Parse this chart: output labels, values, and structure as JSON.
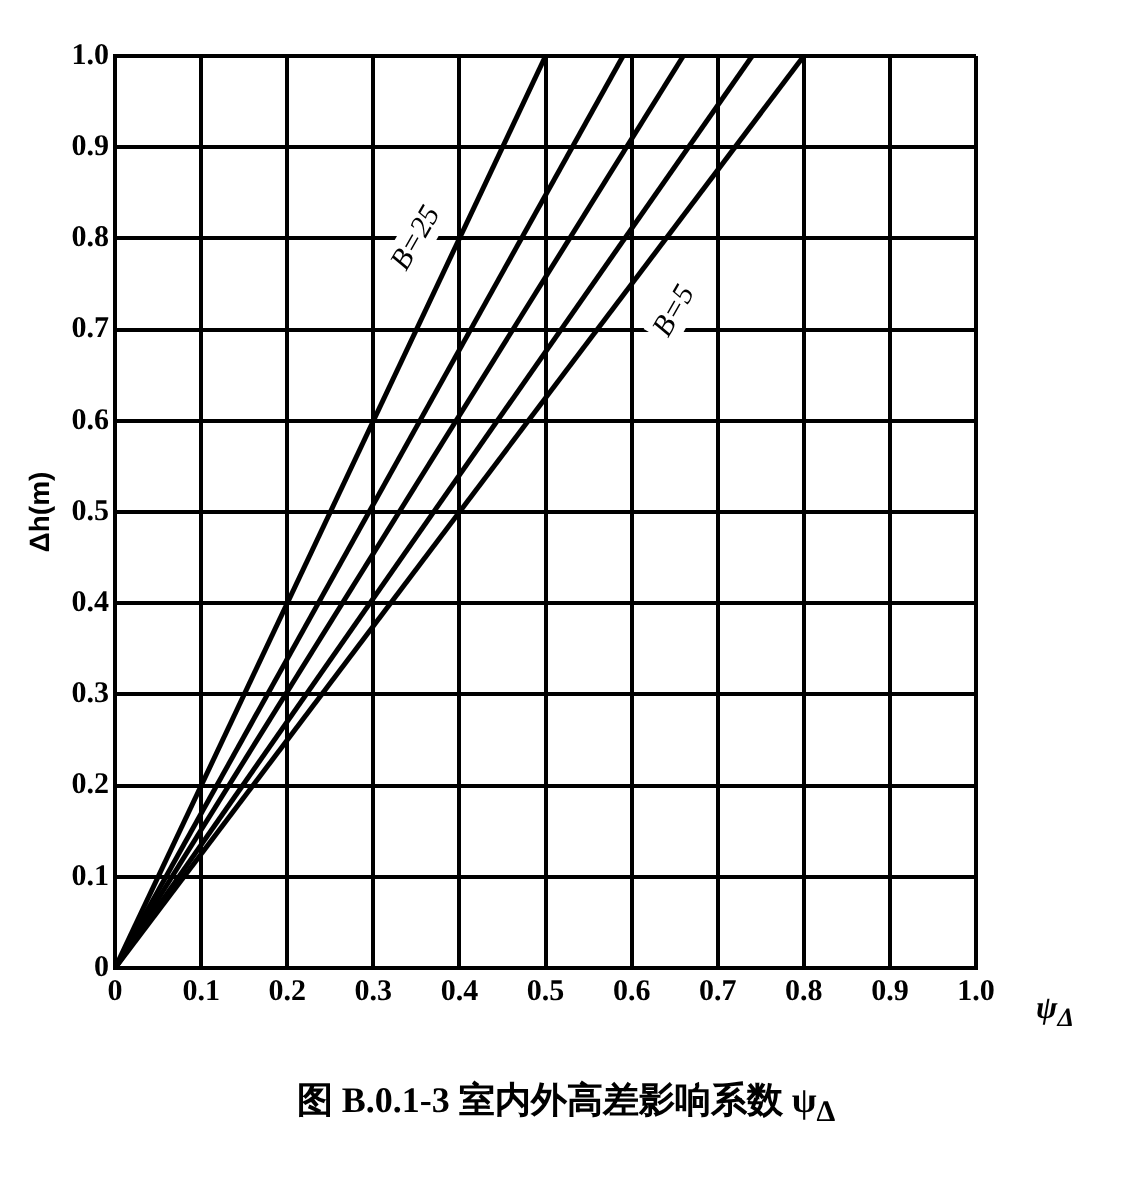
{
  "chart_data": {
    "type": "line",
    "title": "图 B.0.1-3 室内外高差影响系数 ψ$_{Δ}$",
    "xlabel": "ψ$_{Δ}$",
    "ylabel": "Δh(m)",
    "series": [
      {
        "color": "#000000",
        "x": [
          0,
          0.5
        ],
        "values": [
          0,
          1
        ]
      },
      {
        "color": "#000000",
        "x": [
          0,
          0.59
        ],
        "values": [
          0,
          1
        ]
      },
      {
        "color": "#000000",
        "x": [
          0,
          0.66
        ],
        "values": [
          0,
          1
        ]
      },
      {
        "color": "#000000",
        "x": [
          0,
          0.74
        ],
        "values": [
          0,
          1
        ]
      },
      {
        "color": "#000000",
        "x": [
          0,
          0.8
        ],
        "values": [
          0,
          1
        ]
      }
    ],
    "xlim": [
      0,
      1
    ],
    "ylim": [
      0,
      1
    ],
    "xticks": [
      0,
      0.1,
      0.2,
      0.3,
      0.4,
      0.5,
      0.6,
      0.7,
      0.8,
      0.9,
      {
        "value": 1,
        "label": "1.0"
      }
    ],
    "yticks": [
      0,
      0.1,
      0.2,
      0.3,
      0.4,
      0.5,
      0.6,
      0.7,
      0.8,
      0.9,
      {
        "value": 1,
        "label": "1.0"
      }
    ],
    "grid": true,
    "legend": false,
    "marker": "none",
    "line_style": "solid",
    "annotations": [
      {
        "text": "B=25",
        "x": 0.35,
        "y": 0.8
      },
      {
        "text": "B=5",
        "x": 0.65,
        "y": 0.72
      }
    ]
  }
}
